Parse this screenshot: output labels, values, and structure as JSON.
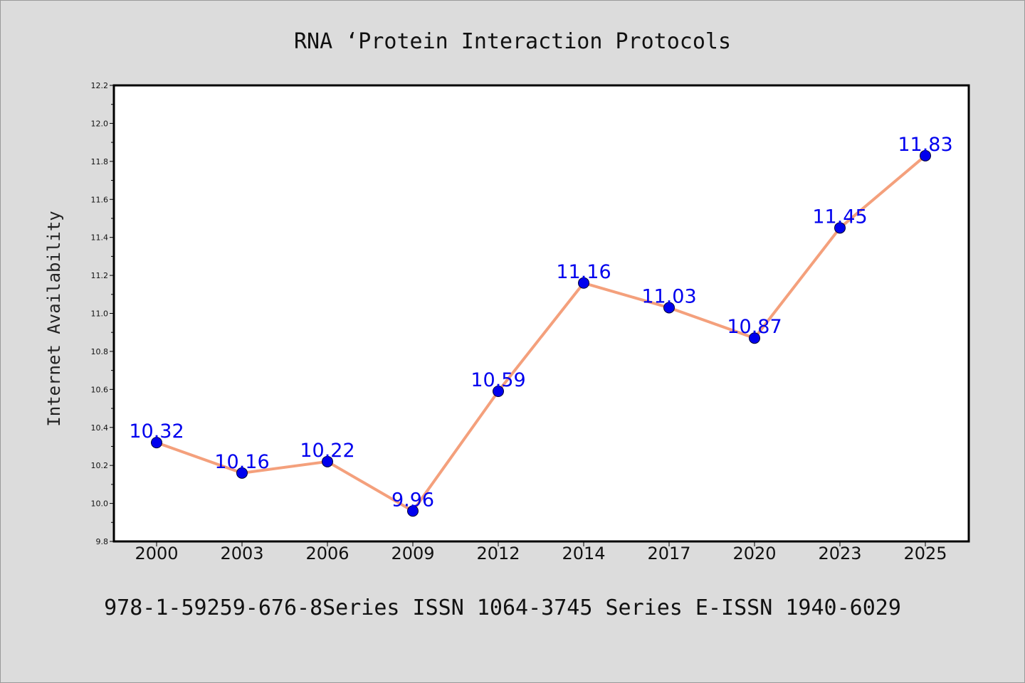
{
  "chart_data": {
    "type": "line",
    "title": "RNA ‘Protein Interaction Protocols",
    "xlabel": "",
    "ylabel": "Internet Availability",
    "categories": [
      "2000",
      "2003",
      "2006",
      "2009",
      "2012",
      "2014",
      "2017",
      "2020",
      "2023",
      "2025"
    ],
    "series": [
      {
        "values": [
          10.32,
          10.16,
          10.22,
          9.96,
          10.59,
          11.16,
          11.03,
          10.87,
          11.45,
          11.83
        ],
        "data_labels": [
          "10.32",
          "10.16",
          "10.22",
          "9.96",
          "10.59",
          "11.16",
          "11.03",
          "10.87",
          "11.45",
          "11.83"
        ],
        "line_color": "#f4a07c",
        "marker_color": "#0000ee"
      }
    ],
    "ylim": [
      9.8,
      12.2
    ],
    "yticks": [
      "9.8",
      "10.0",
      "10.2",
      "10.4",
      "10.6",
      "10.8",
      "11.0",
      "11.2",
      "11.4",
      "11.6",
      "11.8",
      "12.0",
      "12.2"
    ],
    "grid": false,
    "legend": "none"
  },
  "footer": {
    "text": "978-1-59259-676-8Series ISSN 1064-3745 Series E-ISSN 1940-6029"
  }
}
